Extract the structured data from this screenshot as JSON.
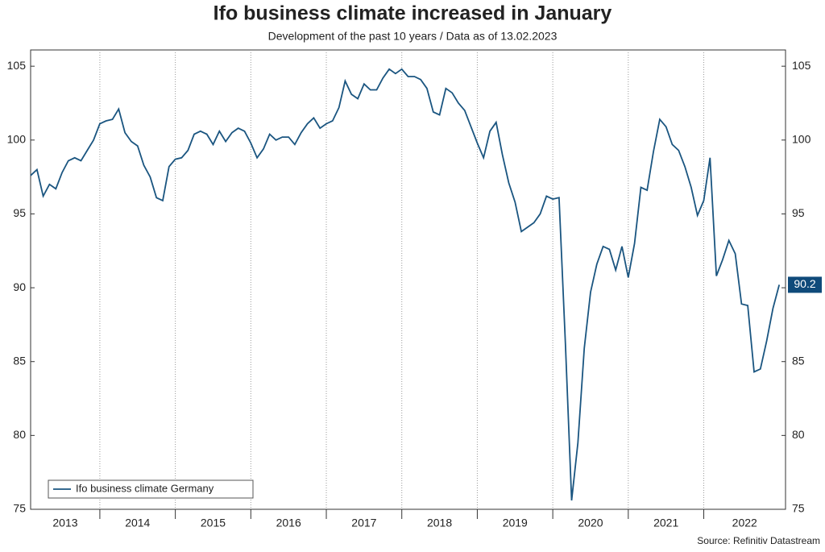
{
  "chart_data": {
    "type": "line",
    "title": "Ifo business climate increased in January",
    "subtitle": "Development of the past 10 years / Data as of 13.02.2023",
    "source": "Source: Refinitiv Datastream",
    "x": [
      2013.083,
      2013.167,
      2013.25,
      2013.333,
      2013.417,
      2013.5,
      2013.583,
      2013.667,
      2013.75,
      2013.833,
      2013.917,
      2014,
      2014.083,
      2014.167,
      2014.25,
      2014.333,
      2014.417,
      2014.5,
      2014.583,
      2014.667,
      2014.75,
      2014.833,
      2014.917,
      2015,
      2015.083,
      2015.167,
      2015.25,
      2015.333,
      2015.417,
      2015.5,
      2015.583,
      2015.667,
      2015.75,
      2015.833,
      2015.917,
      2016,
      2016.083,
      2016.167,
      2016.25,
      2016.333,
      2016.417,
      2016.5,
      2016.583,
      2016.667,
      2016.75,
      2016.833,
      2016.917,
      2017,
      2017.083,
      2017.167,
      2017.25,
      2017.333,
      2017.417,
      2017.5,
      2017.583,
      2017.667,
      2017.75,
      2017.833,
      2017.917,
      2018,
      2018.083,
      2018.167,
      2018.25,
      2018.333,
      2018.417,
      2018.5,
      2018.583,
      2018.667,
      2018.75,
      2018.833,
      2018.917,
      2019,
      2019.083,
      2019.167,
      2019.25,
      2019.333,
      2019.417,
      2019.5,
      2019.583,
      2019.667,
      2019.75,
      2019.833,
      2019.917,
      2020,
      2020.083,
      2020.167,
      2020.25,
      2020.333,
      2020.417,
      2020.5,
      2020.583,
      2020.667,
      2020.75,
      2020.833,
      2020.917,
      2021,
      2021.083,
      2021.167,
      2021.25,
      2021.333,
      2021.417,
      2021.5,
      2021.583,
      2021.667,
      2021.75,
      2021.833,
      2021.917,
      2022,
      2022.083,
      2022.167,
      2022.25,
      2022.333,
      2022.417,
      2022.5,
      2022.583,
      2022.667,
      2022.75,
      2022.833,
      2022.917,
      2023
    ],
    "series": [
      {
        "name": "Ifo business climate Germany",
        "color": "#1a5580",
        "values": [
          97.6,
          98.0,
          96.2,
          97.0,
          96.7,
          97.8,
          98.6,
          98.8,
          98.6,
          99.3,
          100.0,
          101.1,
          101.3,
          101.4,
          102.1,
          100.5,
          99.9,
          99.6,
          98.3,
          97.5,
          96.1,
          95.9,
          98.2,
          98.7,
          98.8,
          99.3,
          100.4,
          100.6,
          100.4,
          99.7,
          100.6,
          99.9,
          100.5,
          100.8,
          100.6,
          99.8,
          98.8,
          99.4,
          100.4,
          100.0,
          100.2,
          100.2,
          99.7,
          100.5,
          101.1,
          101.5,
          100.8,
          101.1,
          101.3,
          102.2,
          104.0,
          103.1,
          102.8,
          103.8,
          103.4,
          103.4,
          104.2,
          104.8,
          104.5,
          104.8,
          104.3,
          104.3,
          104.1,
          103.5,
          101.9,
          101.7,
          103.5,
          103.2,
          102.5,
          102.0,
          100.9,
          99.8,
          98.8,
          100.6,
          101.2,
          99.0,
          97.1,
          95.8,
          93.8,
          94.1,
          94.4,
          95.0,
          96.2,
          96.0,
          96.1,
          86.2,
          75.6,
          79.5,
          85.9,
          89.7,
          91.6,
          92.8,
          92.6,
          91.2,
          92.8,
          90.7,
          93.0,
          96.8,
          96.6,
          99.2,
          101.4,
          100.9,
          99.7,
          99.3,
          98.2,
          96.8,
          94.9,
          95.9,
          98.8,
          90.8,
          91.9,
          93.2,
          92.3,
          88.9,
          88.8,
          84.3,
          84.5,
          86.4,
          88.6,
          90.2
        ]
      }
    ],
    "xlim": [
      2013.083,
      2023.083
    ],
    "xticks": [
      2013,
      2014,
      2015,
      2016,
      2017,
      2018,
      2019,
      2020,
      2021,
      2022
    ],
    "ylim": [
      75,
      106.1
    ],
    "yticks": [
      75,
      80,
      85,
      90,
      95,
      100,
      105
    ],
    "grid": true,
    "legend": "lower left"
  }
}
